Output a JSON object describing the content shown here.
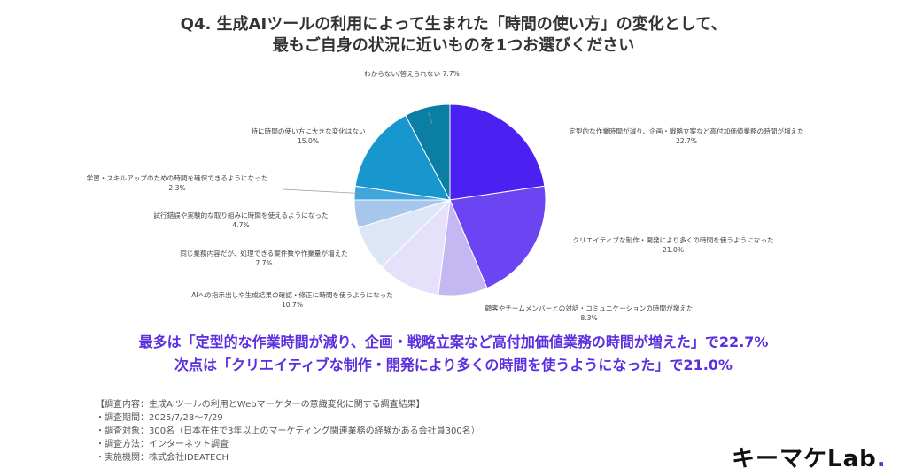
{
  "title": {
    "line1": "Q4. 生成AIツールの利用によって生まれた「時間の使い方」の変化として、",
    "line2": "最もご自身の状況に近いものを1つお選びください"
  },
  "chart_data": {
    "type": "pie",
    "slices": [
      {
        "label": "定型的な作業時間が減り、企画・戦略立案など高付加価値業務の時間が増えた",
        "value": 22.7,
        "value_label": "22.7%",
        "color": "#4b21f2"
      },
      {
        "label": "クリエイティブな制作・開発により多くの時間を使うようになった",
        "value": 21.0,
        "value_label": "21.0%",
        "color": "#6c45f2"
      },
      {
        "label": "顧客やチームメンバーとの対話・コミュニケーションの時間が増えた",
        "value": 8.3,
        "value_label": "8.3%",
        "color": "#c5b8f2"
      },
      {
        "label": "AIへの指示出しや生成結果の確認・修正に時間を使うようになった",
        "value": 10.7,
        "value_label": "10.7%",
        "color": "#e6e1fa"
      },
      {
        "label": "同じ業務内容だが、処理できる案件数や作業量が増えた",
        "value": 7.7,
        "value_label": "7.7%",
        "color": "#dde6f6"
      },
      {
        "label": "試行錯誤や実験的な取り組みに時間を使えるようになった",
        "value": 4.7,
        "value_label": "4.7%",
        "color": "#a7c6ec"
      },
      {
        "label": "学習・スキルアップのための時間を確保できるようになった",
        "value": 2.3,
        "value_label": "2.3%",
        "color": "#3fa6dc"
      },
      {
        "label": "特に時間の使い方に大きな変化はない",
        "value": 15.0,
        "value_label": "15.0%",
        "color": "#1897cf"
      },
      {
        "label": "わからない/答えられない",
        "value": 7.7,
        "value_label": "7.7%",
        "color": "#0b7ea4"
      }
    ]
  },
  "summary": {
    "line1": "最多は「定型的な作業時間が減り、企画・戦略立案など高付加価値業務の時間が増えた」で22.7%",
    "line2": "次点は「クリエイティブな制作・開発により多くの時間を使うようになった」で21.0%"
  },
  "notes": [
    "【調査内容：生成AIツールの利用とWebマーケターの意識変化に関する調査結果】",
    "・調査期間：2025/7/28〜7/29",
    "・調査対象：300名（日本在住で3年以上のマーケティング関連業務の経験がある会社員300名）",
    "・調査方法：インターネット調査",
    "・実施機関：株式会社IDEATECH"
  ],
  "logo": {
    "text": "キーマケLab",
    "dot": "."
  }
}
